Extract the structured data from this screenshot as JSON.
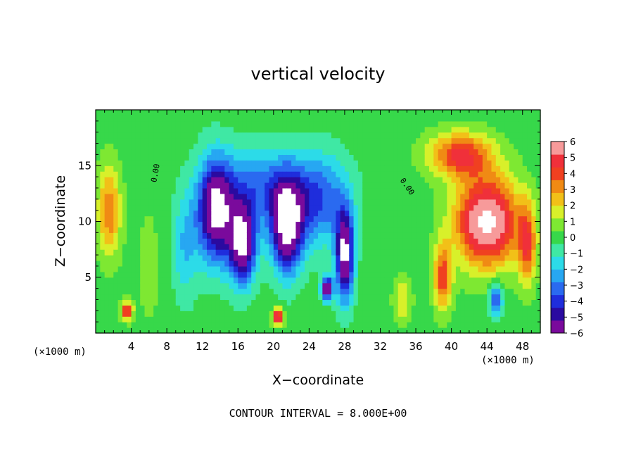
{
  "chart_data": {
    "type": "heatmap",
    "title": "vertical velocity",
    "xlabel": "X−coordinate",
    "ylabel": "Z−coordinate",
    "x_unit_left": "(×1000 m)",
    "x_unit_right": "(×1000 m)",
    "xlim": [
      0,
      50
    ],
    "ylim": [
      0,
      20
    ],
    "x_ticks": [
      "4",
      "8",
      "12",
      "16",
      "20",
      "24",
      "28",
      "32",
      "36",
      "40",
      "44",
      "48"
    ],
    "x_tick_values": [
      4,
      8,
      12,
      16,
      20,
      24,
      28,
      32,
      36,
      40,
      44,
      48
    ],
    "y_ticks": [
      "5",
      "10",
      "15"
    ],
    "y_tick_values": [
      5,
      10,
      15
    ],
    "colorbar": {
      "labels": [
        "6",
        "5",
        "4",
        "3",
        "2",
        "1",
        "0",
        "−1",
        "−2",
        "−3",
        "−4",
        "−5",
        "−6"
      ],
      "range": [
        -6,
        6
      ],
      "colors": [
        "#7a0a9c",
        "#2a0aa0",
        "#1f2ddc",
        "#2a6af0",
        "#27a7f2",
        "#2cdbe8",
        "#3fe8a4",
        "#37d84a",
        "#7ee832",
        "#d8f02a",
        "#f2c018",
        "#f08a14",
        "#f04020",
        "#f0303a",
        "#f79a9a"
      ]
    },
    "field_blobs": [
      {
        "x": 1.5,
        "z": 11,
        "w": 2.5,
        "h": 8,
        "value": 3.5
      },
      {
        "x": 3.5,
        "z": 2,
        "w": 1.2,
        "h": 1.5,
        "value": 5
      },
      {
        "x": 6,
        "z": 6,
        "w": 5,
        "h": 20,
        "value": 0.5
      },
      {
        "x": 10,
        "z": 8,
        "w": 3,
        "h": 10,
        "value": -2
      },
      {
        "x": 13.5,
        "z": 11,
        "w": 4,
        "h": 9,
        "value": -7
      },
      {
        "x": 16.5,
        "z": 8,
        "w": 3,
        "h": 7,
        "value": -7
      },
      {
        "x": 21.5,
        "z": 9.5,
        "w": 3.5,
        "h": 8,
        "value": -7
      },
      {
        "x": 18.5,
        "z": 13,
        "w": 9,
        "h": 7,
        "value": -3
      },
      {
        "x": 28,
        "z": 7,
        "w": 2,
        "h": 8,
        "value": -7
      },
      {
        "x": 26,
        "z": 4,
        "w": 1.2,
        "h": 2,
        "value": -7
      },
      {
        "x": 20.5,
        "z": 1.5,
        "w": 1.2,
        "h": 1.5,
        "value": 6
      },
      {
        "x": 25,
        "z": 12,
        "w": 7,
        "h": 8,
        "value": -3.5
      },
      {
        "x": 32,
        "z": 9,
        "w": 3,
        "h": 10,
        "value": 0
      },
      {
        "x": 34.5,
        "z": 3,
        "w": 2,
        "h": 4,
        "value": 2
      },
      {
        "x": 41,
        "z": 16,
        "w": 7,
        "h": 4,
        "value": 4.5
      },
      {
        "x": 44,
        "z": 10,
        "w": 7,
        "h": 8,
        "value": 7
      },
      {
        "x": 39,
        "z": 5,
        "w": 2,
        "h": 6,
        "value": 4
      },
      {
        "x": 45,
        "z": 3,
        "w": 1.5,
        "h": 3,
        "value": -4
      },
      {
        "x": 48.5,
        "z": 8,
        "w": 2,
        "h": 7,
        "value": 4
      }
    ],
    "contour_labels": [
      "0.00",
      "0.00"
    ],
    "grid": false
  },
  "footer": {
    "contour_interval": "CONTOUR INTERVAL = 8.000E+00"
  }
}
